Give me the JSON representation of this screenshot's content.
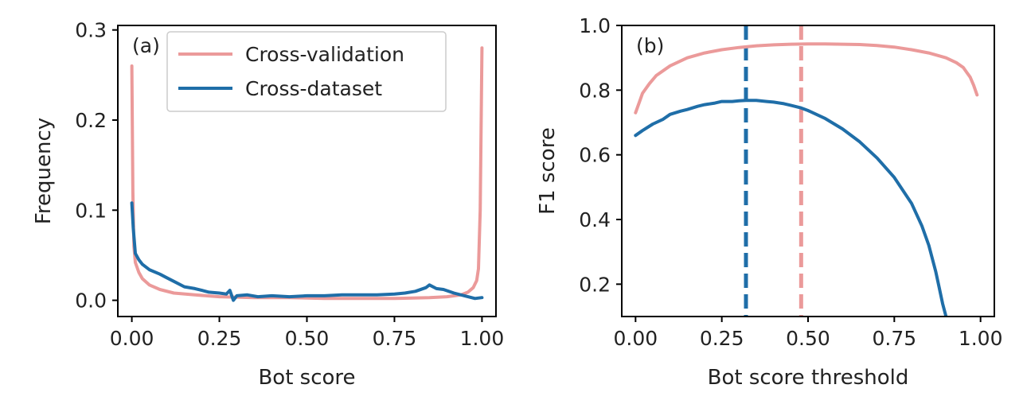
{
  "chart_data": [
    {
      "type": "line",
      "panel_label": "(a)",
      "xlabel": "Bot score",
      "ylabel": "Frequency",
      "xlim": [
        -0.04,
        1.04
      ],
      "ylim": [
        -0.018,
        0.305
      ],
      "xticks": [
        0.0,
        0.25,
        0.5,
        0.75,
        1.0
      ],
      "xtick_labels": [
        "0.00",
        "0.25",
        "0.50",
        "0.75",
        "1.00"
      ],
      "yticks": [
        0.0,
        0.1,
        0.2,
        0.3
      ],
      "ytick_labels": [
        "0.0",
        "0.1",
        "0.2",
        "0.3"
      ],
      "grid": false,
      "legend": {
        "placement": "top-right"
      },
      "series": [
        {
          "name": "Cross-validation",
          "color": "#eb9a9a",
          "x": [
            0.0,
            0.003,
            0.006,
            0.01,
            0.02,
            0.03,
            0.05,
            0.08,
            0.12,
            0.18,
            0.25,
            0.35,
            0.45,
            0.55,
            0.65,
            0.75,
            0.85,
            0.9,
            0.94,
            0.96,
            0.975,
            0.985,
            0.99,
            0.995,
            1.0
          ],
          "y": [
            0.26,
            0.12,
            0.06,
            0.042,
            0.031,
            0.024,
            0.017,
            0.012,
            0.008,
            0.006,
            0.004,
            0.003,
            0.003,
            0.002,
            0.002,
            0.002,
            0.003,
            0.004,
            0.006,
            0.009,
            0.014,
            0.022,
            0.035,
            0.1,
            0.28
          ]
        },
        {
          "name": "Cross-dataset",
          "color": "#1f6ea8",
          "x": [
            0.0,
            0.004,
            0.01,
            0.02,
            0.03,
            0.05,
            0.08,
            0.1,
            0.12,
            0.15,
            0.18,
            0.2,
            0.22,
            0.25,
            0.27,
            0.28,
            0.29,
            0.3,
            0.33,
            0.36,
            0.4,
            0.45,
            0.5,
            0.55,
            0.6,
            0.65,
            0.7,
            0.75,
            0.78,
            0.81,
            0.84,
            0.85,
            0.87,
            0.89,
            0.92,
            0.95,
            0.98,
            1.0
          ],
          "y": [
            0.108,
            0.08,
            0.052,
            0.045,
            0.04,
            0.034,
            0.029,
            0.025,
            0.021,
            0.015,
            0.013,
            0.011,
            0.009,
            0.008,
            0.007,
            0.011,
            0.0,
            0.005,
            0.006,
            0.004,
            0.005,
            0.004,
            0.005,
            0.005,
            0.006,
            0.006,
            0.006,
            0.007,
            0.008,
            0.01,
            0.014,
            0.017,
            0.013,
            0.012,
            0.008,
            0.005,
            0.002,
            0.003
          ]
        }
      ]
    },
    {
      "type": "line",
      "panel_label": "(b)",
      "xlabel": "Bot score threshold",
      "ylabel": "F1 score",
      "xlim": [
        -0.04,
        1.04
      ],
      "ylim": [
        0.1,
        1.0
      ],
      "xticks": [
        0.0,
        0.25,
        0.5,
        0.75,
        1.0
      ],
      "xtick_labels": [
        "0.00",
        "0.25",
        "0.50",
        "0.75",
        "1.00"
      ],
      "yticks": [
        0.2,
        0.4,
        0.6,
        0.8,
        1.0
      ],
      "ytick_labels": [
        "0.2",
        "0.4",
        "0.6",
        "0.8",
        "1.0"
      ],
      "grid": false,
      "series": [
        {
          "color": "#eb9a9a",
          "x": [
            0.0,
            0.01,
            0.02,
            0.04,
            0.06,
            0.1,
            0.15,
            0.2,
            0.25,
            0.3,
            0.35,
            0.4,
            0.45,
            0.5,
            0.55,
            0.6,
            0.65,
            0.7,
            0.75,
            0.8,
            0.85,
            0.9,
            0.93,
            0.95,
            0.96,
            0.97,
            0.98,
            0.99
          ],
          "y": [
            0.73,
            0.76,
            0.79,
            0.82,
            0.845,
            0.875,
            0.9,
            0.915,
            0.925,
            0.932,
            0.937,
            0.94,
            0.942,
            0.943,
            0.943,
            0.942,
            0.941,
            0.938,
            0.933,
            0.925,
            0.915,
            0.9,
            0.885,
            0.87,
            0.855,
            0.84,
            0.815,
            0.785
          ]
        },
        {
          "color": "#1f6ea8",
          "x": [
            0.0,
            0.02,
            0.05,
            0.08,
            0.1,
            0.13,
            0.15,
            0.18,
            0.2,
            0.23,
            0.25,
            0.28,
            0.3,
            0.32,
            0.35,
            0.38,
            0.4,
            0.43,
            0.45,
            0.48,
            0.5,
            0.55,
            0.6,
            0.65,
            0.7,
            0.75,
            0.8,
            0.83,
            0.85,
            0.87,
            0.88,
            0.89,
            0.9
          ],
          "y": [
            0.66,
            0.675,
            0.695,
            0.71,
            0.725,
            0.735,
            0.74,
            0.75,
            0.755,
            0.76,
            0.765,
            0.765,
            0.767,
            0.768,
            0.768,
            0.765,
            0.763,
            0.758,
            0.753,
            0.745,
            0.737,
            0.712,
            0.68,
            0.64,
            0.59,
            0.53,
            0.45,
            0.38,
            0.32,
            0.24,
            0.19,
            0.14,
            0.1
          ]
        }
      ],
      "vlines": [
        {
          "x": 0.32,
          "color": "#1f6ea8",
          "style": "dashed"
        },
        {
          "x": 0.48,
          "color": "#eb9a9a",
          "style": "dashed"
        }
      ]
    }
  ]
}
